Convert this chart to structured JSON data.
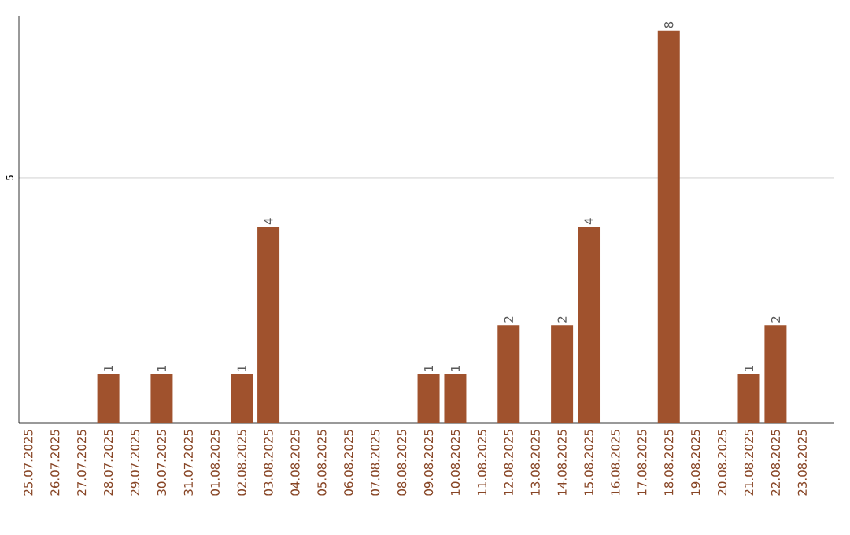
{
  "chart_data": {
    "type": "bar",
    "categories": [
      "25.07.2025",
      "26.07.2025",
      "27.07.2025",
      "28.07.2025",
      "29.07.2025",
      "30.07.2025",
      "31.07.2025",
      "01.08.2025",
      "02.08.2025",
      "03.08.2025",
      "04.08.2025",
      "05.08.2025",
      "06.08.2025",
      "07.08.2025",
      "08.08.2025",
      "09.08.2025",
      "10.08.2025",
      "11.08.2025",
      "12.08.2025",
      "13.08.2025",
      "14.08.2025",
      "15.08.2025",
      "16.08.2025",
      "17.08.2025",
      "18.08.2025",
      "19.08.2025",
      "20.08.2025",
      "21.08.2025",
      "22.08.2025",
      "23.08.2025"
    ],
    "values": [
      0,
      0,
      0,
      1,
      0,
      1,
      0,
      0,
      1,
      4,
      0,
      0,
      0,
      0,
      0,
      1,
      1,
      0,
      2,
      0,
      2,
      4,
      0,
      0,
      8,
      0,
      0,
      1,
      2,
      0
    ],
    "value_labels": [
      null,
      null,
      null,
      "1",
      null,
      "1",
      null,
      null,
      "1",
      "4",
      null,
      null,
      null,
      null,
      null,
      "1",
      "1",
      null,
      "2",
      null,
      "2",
      "4",
      null,
      null,
      "8",
      null,
      null,
      "1",
      "2",
      null
    ],
    "color": "#a0522d",
    "ylim": [
      0,
      8.3
    ],
    "yticks": [
      5
    ],
    "grid": "y"
  }
}
